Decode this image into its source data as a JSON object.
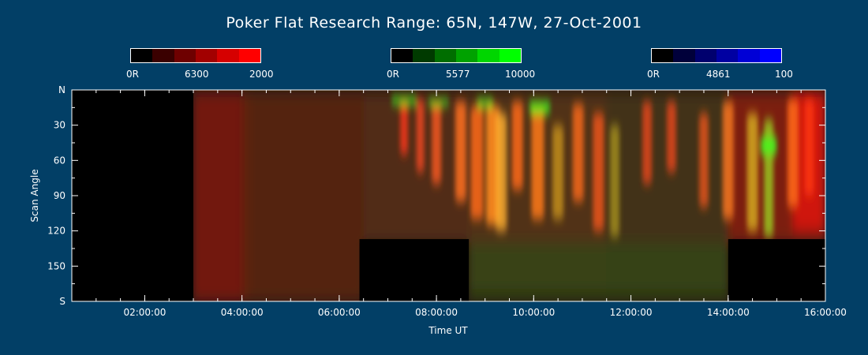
{
  "title": "Poker Flat Research Range: 65N, 147W, 27-Oct-2001",
  "colorbars": [
    {
      "name": "6300",
      "min_label": "0R",
      "mid_label": "6300",
      "max_label": "2000",
      "colors": [
        "#000000",
        "#3a0000",
        "#6e0000",
        "#a20000",
        "#d60000",
        "#ff0000"
      ]
    },
    {
      "name": "5577",
      "min_label": "0R",
      "mid_label": "5577",
      "max_label": "10000",
      "colors": [
        "#000000",
        "#003a00",
        "#006e00",
        "#00a200",
        "#00d600",
        "#00ff00"
      ]
    },
    {
      "name": "4861",
      "min_label": "0R",
      "mid_label": "4861",
      "max_label": "100",
      "colors": [
        "#000000",
        "#00003a",
        "#00006e",
        "#0000a2",
        "#0000d6",
        "#0000ff"
      ]
    }
  ],
  "chart_data": {
    "type": "heatmap",
    "title": "Poker Flat Research Range: 65N, 147W, 27-Oct-2001",
    "xlabel": "Time UT",
    "ylabel": "Scan Angle",
    "xlim": [
      "00:30:00",
      "16:00:00"
    ],
    "ylim": [
      0,
      180
    ],
    "x_ticks": [
      "02:00:00",
      "04:00:00",
      "06:00:00",
      "08:00:00",
      "10:00:00",
      "12:00:00",
      "14:00:00",
      "16:00:00"
    ],
    "y_ticks": [
      {
        "value": 0,
        "label": "N"
      },
      {
        "value": 30,
        "label": "30"
      },
      {
        "value": 60,
        "label": "60"
      },
      {
        "value": 90,
        "label": "90"
      },
      {
        "value": 120,
        "label": "120"
      },
      {
        "value": 150,
        "label": "150"
      },
      {
        "value": 180,
        "label": "S"
      }
    ],
    "data_gaps": [
      {
        "start": "00:30:00",
        "end": "03:00:00",
        "angle_from": 0,
        "angle_to": 180
      },
      {
        "start": "06:25:00",
        "end": "08:40:00",
        "angle_from": 127,
        "angle_to": 180
      },
      {
        "start": "14:00:00",
        "end": "16:00:00",
        "angle_from": 127,
        "angle_to": 180
      }
    ],
    "emissions": [
      {
        "wavelength": "6300",
        "color": "#ff0000",
        "min": "0R",
        "max": "2000"
      },
      {
        "wavelength": "5577",
        "color": "#00ff00",
        "min": "0R",
        "max": "10000"
      },
      {
        "wavelength": "4861",
        "color": "#0000ff",
        "min": "0R",
        "max": "100"
      }
    ]
  }
}
